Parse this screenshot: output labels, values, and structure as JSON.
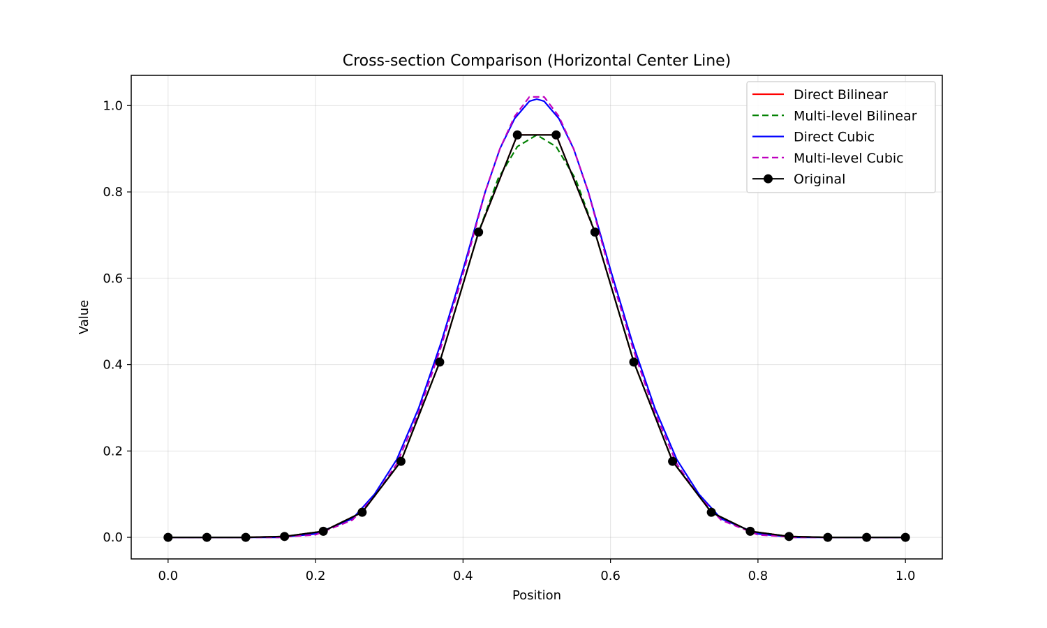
{
  "chart_data": {
    "type": "line",
    "title": "Cross-section Comparison (Horizontal Center Line)",
    "xlabel": "Position",
    "ylabel": "Value",
    "xlim": [
      -0.05,
      1.05
    ],
    "ylim": [
      -0.05,
      1.07
    ],
    "xticks": [
      0.0,
      0.2,
      0.4,
      0.6,
      0.8,
      1.0
    ],
    "yticks": [
      0.0,
      0.2,
      0.4,
      0.6,
      0.8,
      1.0
    ],
    "xtick_labels": [
      "0.0",
      "0.2",
      "0.4",
      "0.6",
      "0.8",
      "1.0"
    ],
    "ytick_labels": [
      "0.0",
      "0.2",
      "0.4",
      "0.6",
      "0.8",
      "1.0"
    ],
    "grid": true,
    "legend_position": "top-right",
    "series": [
      {
        "name": "Direct Bilinear",
        "color": "#ff0000",
        "style": "solid",
        "x": [
          0.0,
          0.0526,
          0.1053,
          0.1579,
          0.2105,
          0.2632,
          0.3158,
          0.3684,
          0.4211,
          0.4737,
          0.5,
          0.5263,
          0.5789,
          0.6316,
          0.6842,
          0.7368,
          0.7895,
          0.8421,
          0.8947,
          0.9474,
          1.0
        ],
        "y": [
          0.0,
          0.0,
          0.0,
          0.002,
          0.014,
          0.058,
          0.176,
          0.406,
          0.707,
          0.932,
          0.932,
          0.932,
          0.707,
          0.406,
          0.176,
          0.058,
          0.014,
          0.002,
          0.0,
          0.0,
          0.0
        ]
      },
      {
        "name": "Multi-level Bilinear",
        "color": "#008000",
        "style": "dashed",
        "x": [
          0.0,
          0.0526,
          0.1053,
          0.1579,
          0.2105,
          0.2632,
          0.3158,
          0.3684,
          0.4211,
          0.4474,
          0.4737,
          0.5,
          0.5263,
          0.5526,
          0.5789,
          0.6316,
          0.6842,
          0.7368,
          0.7895,
          0.8421,
          0.8947,
          0.9474,
          1.0
        ],
        "y": [
          0.0,
          0.0,
          0.0,
          0.002,
          0.014,
          0.058,
          0.176,
          0.406,
          0.707,
          0.83,
          0.905,
          0.932,
          0.905,
          0.83,
          0.707,
          0.406,
          0.176,
          0.058,
          0.014,
          0.002,
          0.0,
          0.0,
          0.0
        ]
      },
      {
        "name": "Direct Cubic",
        "color": "#0000ff",
        "style": "solid",
        "x": [
          0.0,
          0.05,
          0.1,
          0.15,
          0.2,
          0.25,
          0.28,
          0.31,
          0.34,
          0.37,
          0.4,
          0.43,
          0.45,
          0.47,
          0.49,
          0.5,
          0.51,
          0.53,
          0.55,
          0.57,
          0.6,
          0.63,
          0.66,
          0.69,
          0.72,
          0.75,
          0.8,
          0.85,
          0.9,
          0.95,
          1.0
        ],
        "y": [
          0.0,
          0.0,
          0.0,
          0.0,
          0.008,
          0.043,
          0.1,
          0.18,
          0.3,
          0.45,
          0.62,
          0.8,
          0.9,
          0.97,
          1.01,
          1.015,
          1.01,
          0.97,
          0.9,
          0.8,
          0.62,
          0.45,
          0.3,
          0.18,
          0.1,
          0.043,
          0.008,
          0.0,
          0.0,
          0.0,
          0.0
        ]
      },
      {
        "name": "Multi-level Cubic",
        "color": "#bf00bf",
        "style": "dashed",
        "x": [
          0.0,
          0.05,
          0.1,
          0.15,
          0.2,
          0.25,
          0.28,
          0.31,
          0.34,
          0.37,
          0.4,
          0.43,
          0.45,
          0.47,
          0.49,
          0.5,
          0.51,
          0.53,
          0.55,
          0.57,
          0.6,
          0.63,
          0.66,
          0.69,
          0.72,
          0.75,
          0.8,
          0.85,
          0.9,
          0.95,
          1.0
        ],
        "y": [
          0.0,
          0.0,
          0.0,
          0.0,
          0.006,
          0.04,
          0.095,
          0.17,
          0.29,
          0.44,
          0.61,
          0.8,
          0.9,
          0.975,
          1.02,
          1.02,
          1.02,
          0.975,
          0.9,
          0.8,
          0.61,
          0.44,
          0.29,
          0.17,
          0.095,
          0.04,
          0.006,
          0.0,
          0.0,
          0.0,
          0.0
        ]
      },
      {
        "name": "Original",
        "color": "#000000",
        "style": "solid-markers",
        "x": [
          0.0,
          0.0526,
          0.1053,
          0.1579,
          0.2105,
          0.2632,
          0.3158,
          0.3684,
          0.4211,
          0.4737,
          0.5263,
          0.5789,
          0.6316,
          0.6842,
          0.7368,
          0.7895,
          0.8421,
          0.8947,
          0.9474,
          1.0
        ],
        "y": [
          0.0,
          0.0,
          0.0,
          0.002,
          0.014,
          0.058,
          0.176,
          0.406,
          0.707,
          0.932,
          0.932,
          0.707,
          0.406,
          0.176,
          0.058,
          0.014,
          0.002,
          0.0,
          0.0,
          0.0
        ]
      }
    ]
  }
}
